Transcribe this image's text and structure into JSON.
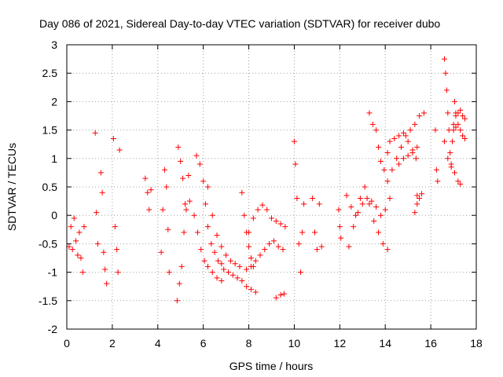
{
  "chart_data": {
    "type": "scatter",
    "title": "Day 086 of 2021, Sidereal Day-to-day VTEC variation (SDTVAR) for receiver dubo",
    "xlabel": "GPS time / hours",
    "ylabel": "SDTVAR / TECUs",
    "xlim": [
      0,
      18
    ],
    "ylim": [
      -2,
      3
    ],
    "xticks": [
      0,
      2,
      4,
      6,
      8,
      10,
      12,
      14,
      16,
      18
    ],
    "yticks": [
      -2,
      -1.5,
      -1,
      -0.5,
      0,
      0.5,
      1,
      1.5,
      2,
      2.5,
      3
    ],
    "xtick_labels": [
      "0",
      "2",
      "4",
      "6",
      "8",
      "10",
      "12",
      "14",
      "16",
      "18"
    ],
    "ytick_labels": [
      "-2",
      "-1.5",
      "-1",
      "-0.5",
      "0",
      "0.5",
      "1",
      "1.5",
      "2",
      "2.5",
      "3"
    ],
    "grid": true,
    "marker": "+",
    "marker_color": "#ff0000",
    "series": [
      {
        "name": "SDTVAR",
        "segments": [
          [
            [
              0.1,
              -0.55
            ],
            [
              0.18,
              -0.2
            ],
            [
              0.25,
              -0.6
            ],
            [
              0.32,
              -0.05
            ],
            [
              0.4,
              -0.45
            ],
            [
              0.48,
              -0.7
            ]
          ],
          [
            [
              0.55,
              -0.3
            ],
            [
              0.62,
              -0.75
            ],
            [
              0.7,
              -1.0
            ],
            [
              0.76,
              -0.2
            ]
          ],
          [
            [
              1.25,
              1.45
            ],
            [
              1.3,
              0.05
            ],
            [
              1.36,
              -0.5
            ]
          ],
          [
            [
              1.5,
              0.75
            ],
            [
              1.56,
              0.4
            ],
            [
              1.62,
              -0.65
            ],
            [
              1.68,
              -0.95
            ],
            [
              1.75,
              -1.2
            ]
          ],
          [
            [
              2.05,
              1.35
            ],
            [
              2.12,
              -0.2
            ],
            [
              2.2,
              -0.6
            ],
            [
              2.25,
              -1.0
            ],
            [
              2.32,
              1.15
            ]
          ],
          [
            [
              3.45,
              0.65
            ],
            [
              3.55,
              0.4
            ],
            [
              3.62,
              0.1
            ],
            [
              3.7,
              0.45
            ]
          ],
          [
            [
              4.15,
              -0.65
            ],
            [
              4.22,
              0.1
            ],
            [
              4.3,
              0.8
            ],
            [
              4.38,
              0.5
            ],
            [
              4.45,
              -0.25
            ],
            [
              4.5,
              -1.0
            ]
          ],
          [
            [
              4.85,
              -1.5
            ],
            [
              4.95,
              -1.2
            ],
            [
              5.05,
              -0.9
            ],
            [
              5.15,
              -0.3
            ],
            [
              5.25,
              0.1
            ],
            [
              5.35,
              0.7
            ],
            [
              5.4,
              0.25
            ]
          ],
          [
            [
              4.9,
              1.2
            ],
            [
              5.0,
              0.95
            ],
            [
              5.1,
              0.65
            ],
            [
              5.2,
              0.2
            ]
          ],
          [
            [
              5.7,
              1.05
            ],
            [
              5.85,
              0.9
            ],
            [
              6.0,
              0.6
            ],
            [
              6.1,
              0.2
            ],
            [
              6.2,
              -0.2
            ],
            [
              6.35,
              -0.5
            ],
            [
              6.5,
              -0.65
            ],
            [
              6.65,
              -0.8
            ],
            [
              6.8,
              -0.85
            ]
          ],
          [
            [
              5.6,
              0.0
            ],
            [
              5.75,
              -0.3
            ],
            [
              5.9,
              -0.6
            ],
            [
              6.05,
              -0.8
            ],
            [
              6.2,
              -0.9
            ],
            [
              6.4,
              -1.0
            ],
            [
              6.6,
              -1.1
            ],
            [
              6.8,
              -1.15
            ]
          ],
          [
            [
              6.2,
              0.5
            ],
            [
              6.4,
              0.0
            ],
            [
              6.6,
              -0.35
            ],
            [
              6.8,
              -0.55
            ],
            [
              7.0,
              -0.7
            ],
            [
              7.2,
              -0.8
            ],
            [
              7.4,
              -0.85
            ],
            [
              7.6,
              -0.9
            ]
          ],
          [
            [
              6.9,
              -0.95
            ],
            [
              7.1,
              -1.0
            ],
            [
              7.3,
              -1.05
            ],
            [
              7.5,
              -1.1
            ],
            [
              7.7,
              -1.15
            ],
            [
              7.9,
              -1.25
            ],
            [
              8.1,
              -1.3
            ],
            [
              8.3,
              -1.35
            ]
          ],
          [
            [
              7.7,
              0.4
            ],
            [
              7.8,
              0.0
            ],
            [
              7.9,
              -0.3
            ],
            [
              8.0,
              -0.55
            ],
            [
              8.1,
              -0.75
            ],
            [
              8.2,
              -0.9
            ]
          ],
          [
            [
              8.0,
              -0.3
            ],
            [
              8.2,
              -0.05
            ],
            [
              8.4,
              0.1
            ],
            [
              8.6,
              0.18
            ],
            [
              8.8,
              0.1
            ],
            [
              9.0,
              -0.05
            ],
            [
              9.2,
              -0.1
            ],
            [
              9.4,
              -0.15
            ],
            [
              9.6,
              -0.2
            ]
          ],
          [
            [
              7.9,
              -0.95
            ],
            [
              8.1,
              -0.9
            ],
            [
              8.3,
              -0.8
            ],
            [
              8.5,
              -0.7
            ],
            [
              8.7,
              -0.6
            ],
            [
              8.9,
              -0.5
            ],
            [
              9.1,
              -0.45
            ],
            [
              9.3,
              -0.55
            ],
            [
              9.5,
              -0.6
            ]
          ],
          [
            [
              9.2,
              -1.45
            ],
            [
              9.4,
              -1.4
            ],
            [
              9.55,
              -1.38
            ]
          ],
          [
            [
              10.0,
              1.3
            ],
            [
              10.05,
              0.9
            ],
            [
              10.12,
              0.3
            ],
            [
              10.2,
              -0.5
            ],
            [
              10.28,
              -1.0
            ],
            [
              10.35,
              -0.3
            ],
            [
              10.42,
              0.2
            ]
          ],
          [
            [
              10.8,
              0.3
            ],
            [
              10.9,
              -0.3
            ],
            [
              11.0,
              -0.6
            ],
            [
              11.1,
              0.2
            ],
            [
              11.2,
              -0.55
            ]
          ],
          [
            [
              11.95,
              0.1
            ],
            [
              12.0,
              -0.2
            ],
            [
              12.05,
              -0.4
            ]
          ],
          [
            [
              12.3,
              0.35
            ],
            [
              12.5,
              0.15
            ],
            [
              12.7,
              0.0
            ],
            [
              12.9,
              0.3
            ],
            [
              13.1,
              0.5
            ],
            [
              13.3,
              0.2
            ],
            [
              13.5,
              -0.1
            ],
            [
              13.7,
              -0.3
            ],
            [
              13.9,
              -0.5
            ],
            [
              14.1,
              -0.6
            ]
          ],
          [
            [
              12.4,
              -0.55
            ],
            [
              12.6,
              -0.2
            ],
            [
              12.8,
              0.05
            ],
            [
              13.0,
              0.2
            ],
            [
              13.2,
              0.3
            ],
            [
              13.4,
              0.25
            ],
            [
              13.6,
              0.15
            ],
            [
              13.8,
              0.0
            ],
            [
              14.0,
              0.1
            ],
            [
              14.2,
              0.3
            ]
          ],
          [
            [
              13.3,
              1.8
            ],
            [
              13.45,
              1.6
            ],
            [
              13.6,
              1.5
            ],
            [
              13.7,
              1.2
            ],
            [
              13.8,
              0.95
            ],
            [
              13.95,
              0.8
            ],
            [
              14.1,
              1.1
            ]
          ],
          [
            [
              14.1,
              0.6
            ],
            [
              14.3,
              0.8
            ],
            [
              14.5,
              1.0
            ],
            [
              14.7,
              1.2
            ],
            [
              14.9,
              1.4
            ],
            [
              15.1,
              1.5
            ],
            [
              15.3,
              1.6
            ],
            [
              15.5,
              1.75
            ],
            [
              15.7,
              1.8
            ]
          ],
          [
            [
              14.2,
              1.3
            ],
            [
              14.4,
              1.35
            ],
            [
              14.6,
              1.4
            ],
            [
              14.8,
              1.45
            ],
            [
              15.0,
              1.3
            ],
            [
              15.2,
              1.15
            ],
            [
              15.35,
              1.0
            ]
          ],
          [
            [
              14.6,
              0.9
            ],
            [
              14.8,
              1.0
            ],
            [
              15.0,
              1.05
            ],
            [
              15.2,
              1.1
            ],
            [
              15.4,
              1.2
            ]
          ],
          [
            [
              15.4,
              0.35
            ],
            [
              15.5,
              0.3
            ],
            [
              15.6,
              0.38
            ]
          ],
          [
            [
              15.3,
              0.05
            ],
            [
              15.4,
              0.2
            ]
          ],
          [
            [
              16.2,
              1.5
            ],
            [
              16.25,
              0.8
            ],
            [
              16.3,
              0.6
            ]
          ],
          [
            [
              16.6,
              2.75
            ],
            [
              16.65,
              2.5
            ],
            [
              16.7,
              2.2
            ],
            [
              16.75,
              1.8
            ],
            [
              16.8,
              1.5
            ],
            [
              16.85,
              1.1
            ],
            [
              16.9,
              0.9
            ],
            [
              16.95,
              1.3
            ],
            [
              17.0,
              1.6
            ],
            [
              17.05,
              2.0
            ],
            [
              17.1,
              1.8
            ]
          ],
          [
            [
              16.6,
              1.3
            ],
            [
              16.75,
              1.0
            ],
            [
              16.9,
              0.85
            ],
            [
              17.05,
              0.75
            ],
            [
              17.2,
              0.6
            ],
            [
              17.3,
              0.55
            ]
          ],
          [
            [
              17.0,
              1.5
            ],
            [
              17.1,
              1.55
            ],
            [
              17.2,
              1.6
            ],
            [
              17.3,
              1.5
            ],
            [
              17.4,
              1.4
            ],
            [
              17.5,
              1.35
            ]
          ],
          [
            [
              17.1,
              1.75
            ],
            [
              17.2,
              1.8
            ],
            [
              17.3,
              1.85
            ],
            [
              17.4,
              1.75
            ],
            [
              17.5,
              1.7
            ]
          ]
        ]
      }
    ]
  }
}
